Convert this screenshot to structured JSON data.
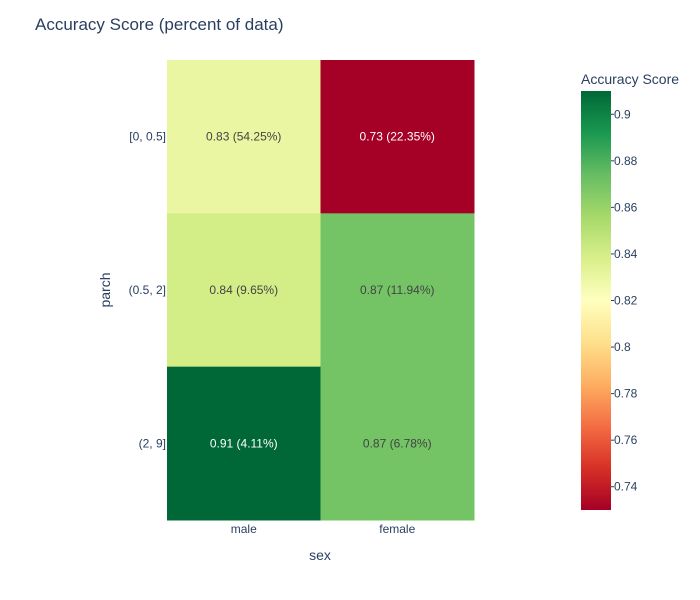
{
  "chart_data": {
    "type": "heatmap",
    "title": "Accuracy Score (percent of data)",
    "xlabel": "sex",
    "ylabel": "parch",
    "x_categories": [
      "male",
      "female"
    ],
    "y_categories": [
      "[0, 0.5]",
      "(0.5, 2]",
      "(2, 9]"
    ],
    "values": [
      [
        0.83,
        0.73
      ],
      [
        0.84,
        0.87
      ],
      [
        0.91,
        0.87
      ]
    ],
    "cell_labels": [
      [
        "0.83 (54.25%)",
        "0.73 (22.35%)"
      ],
      [
        "0.84 (9.65%)",
        "0.87 (11.94%)"
      ],
      [
        "0.91 (4.11%)",
        "0.87 (6.78%)"
      ]
    ],
    "colorscale": "RdYlGn",
    "colorscale_stops": [
      "#a50026",
      "#d73027",
      "#f46d43",
      "#fdae61",
      "#fee08b",
      "#ffffbf",
      "#d9ef8b",
      "#a6d96a",
      "#66bd63",
      "#1a9850",
      "#006837"
    ],
    "zmin": 0.73,
    "zmax": 0.91,
    "colorbar": {
      "title": "Accuracy Score",
      "ticks": [
        0.74,
        0.76,
        0.78,
        0.8,
        0.82,
        0.84,
        0.86,
        0.88,
        0.9
      ],
      "tick_labels": [
        "0.74",
        "0.76",
        "0.78",
        "0.8",
        "0.82",
        "0.84",
        "0.86",
        "0.88",
        "0.9"
      ],
      "placement": "right"
    }
  }
}
